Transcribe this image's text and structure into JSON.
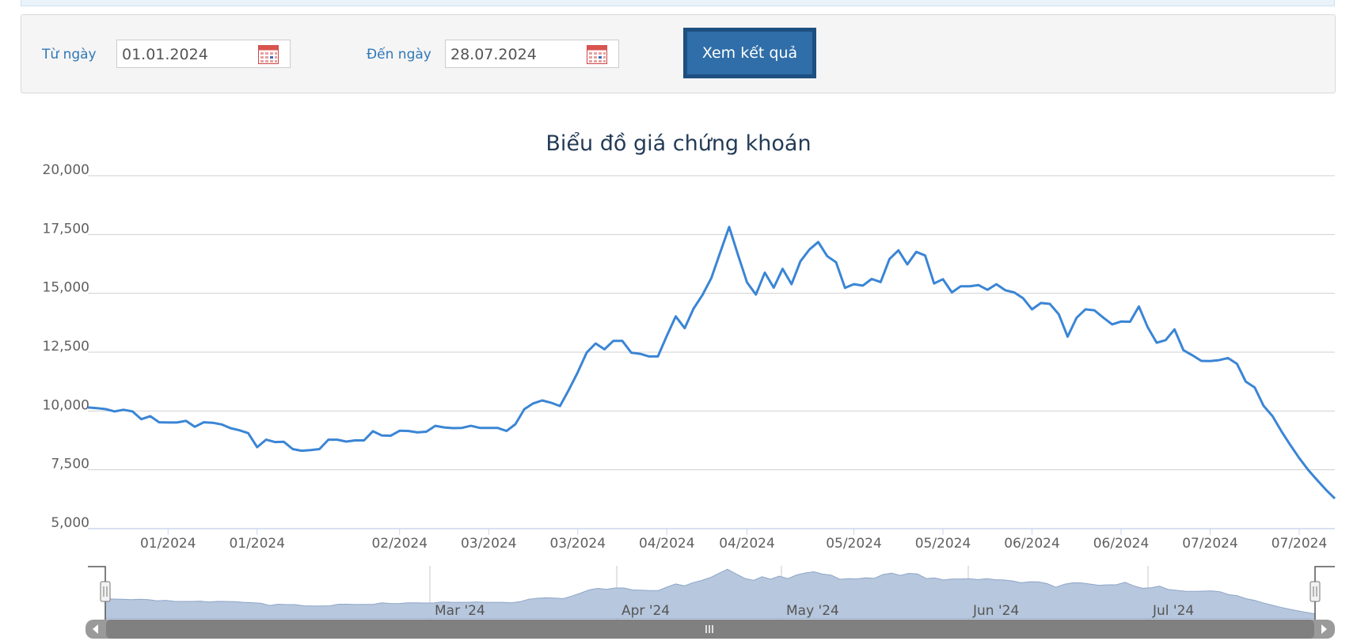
{
  "filter": {
    "from_label": "Từ ngày",
    "from_value": "01.01.2024",
    "to_label": "Đến ngày",
    "to_value": "28.07.2024",
    "submit_label": "Xem kết quả"
  },
  "colors": {
    "accent": "#2f78b6",
    "button": "#2f6ea8",
    "line": "#3a85d5",
    "navigator_fill": "#b7c7dd"
  },
  "chart_data": {
    "type": "line",
    "title": "Biểu đồ giá chứng khoán",
    "ylim": [
      5000,
      20000
    ],
    "yticks": [
      "20,000",
      "17,500",
      "15,000",
      "12,500",
      "10,000",
      "7,500",
      "5,000"
    ],
    "xtick_labels": [
      "01/2024",
      "01/2024",
      "02/2024",
      "03/2024",
      "03/2024",
      "04/2024",
      "04/2024",
      "05/2024",
      "05/2024",
      "06/2024",
      "06/2024",
      "07/2024",
      "07/2024"
    ],
    "navigator_labels": [
      "Mar '24",
      "Apr '24",
      "May '24",
      "Jun '24",
      "Jul '24"
    ],
    "grid": true,
    "legend": "none",
    "series": [
      {
        "values": [
          10150,
          10120,
          10080,
          9980,
          10050,
          9980,
          9650,
          9780,
          9520,
          9510,
          9510,
          9580,
          9330,
          9520,
          9500,
          9430,
          9270,
          9180,
          9060,
          8460,
          8780,
          8680,
          8690,
          8380,
          8310,
          8340,
          8380,
          8780,
          8780,
          8700,
          8750,
          8750,
          9140,
          8960,
          8950,
          9160,
          9150,
          9090,
          9120,
          9370,
          9300,
          9270,
          9280,
          9370,
          9280,
          9280,
          9280,
          9150,
          9440,
          10080,
          10320,
          10450,
          10350,
          10210,
          10900,
          11650,
          12480,
          12870,
          12620,
          12980,
          12980,
          12480,
          12430,
          12320,
          12320,
          13200,
          14020,
          13520,
          14350,
          14930,
          15650,
          16750,
          17820,
          16620,
          15470,
          14950,
          15880,
          15240,
          16040,
          15390,
          16360,
          16860,
          17180,
          16580,
          16320,
          15230,
          15390,
          15330,
          15610,
          15480,
          16460,
          16830,
          16230,
          16760,
          16610,
          15420,
          15600,
          15040,
          15300,
          15300,
          15350,
          15150,
          15390,
          15130,
          15040,
          14790,
          14320,
          14590,
          14550,
          14110,
          13160,
          13960,
          14320,
          14280,
          13970,
          13680,
          13800,
          13790,
          14440,
          13550,
          12900,
          13010,
          13470,
          12580,
          12370,
          12130,
          12120,
          12160,
          12250,
          12010,
          11250,
          11000,
          10220,
          9780,
          9140,
          8550,
          8000,
          7500,
          7070,
          6650,
          6280
        ]
      }
    ]
  }
}
